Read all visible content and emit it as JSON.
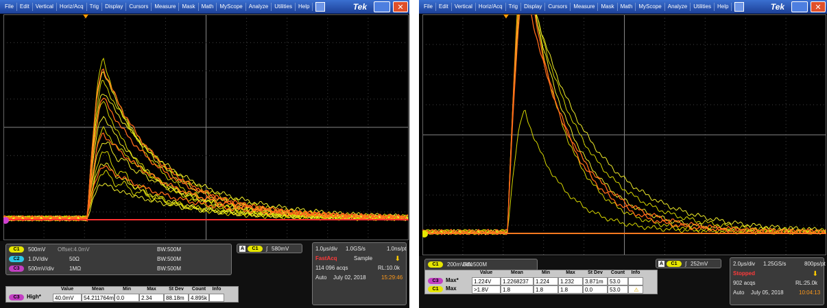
{
  "screens": [
    {
      "menu": [
        "File",
        "Edit",
        "Vertical",
        "Horiz/Acq",
        "Trig",
        "Display",
        "Cursors",
        "Measure",
        "Mask",
        "Math",
        "MyScope",
        "Analyze",
        "Utilities",
        "Help"
      ],
      "brand": "Tek",
      "channels": [
        {
          "badge": "C1",
          "color": "#e6e600",
          "scale": "500mV",
          "extra": "Offset:4.0mV",
          "bw": "BW:500M"
        },
        {
          "badge": "C2",
          "color": "#2ec8e6",
          "scale": "1.0V/div",
          "extra": "50Ω",
          "bw": "BW:500M"
        },
        {
          "badge": "C3",
          "color": "#c23fc2",
          "scale": "500mV/div",
          "extra": "1MΩ",
          "bw": "BW:500M"
        }
      ],
      "trigger": {
        "source": "A",
        "channel": "C1",
        "color": "#e6e600",
        "level": "580mV"
      },
      "acquisition": {
        "timebase": "1.0μs/div",
        "rate": "1.0GS/s",
        "resolution": "1.0ns/pt",
        "mode": "FastAcq",
        "sample": "Sample",
        "acqs": "114 096 acqs",
        "record": "RL:10.0k",
        "trigger_mode": "Auto",
        "date": "July 02, 2018",
        "time": "15:29:46"
      },
      "measurements": {
        "header": [
          "Value",
          "Mean",
          "Min",
          "Max",
          "St Dev",
          "Count",
          "Info"
        ],
        "rows": [
          {
            "badge": "C3",
            "color": "#c23fc2",
            "label": "High*",
            "cells": [
              "40.0mV",
              "54.211764m",
              "0.0",
              "2.34",
              "88.18m",
              "4.895k"
            ],
            "warning": false
          }
        ]
      }
    },
    {
      "menu": [
        "File",
        "Edit",
        "Vertical",
        "Horiz/Acq",
        "Trig",
        "Display",
        "Cursors",
        "Measure",
        "Mask",
        "Math",
        "MyScope",
        "Analyze",
        "Utilities",
        "Help"
      ],
      "brand": "Tek",
      "channels": [
        {
          "badge": "C1",
          "color": "#e6e600",
          "scale": "200mV/div",
          "bw": "BW:500M"
        }
      ],
      "trigger": {
        "source": "A",
        "channel": "C1",
        "color": "#e6e600",
        "level": "252mV"
      },
      "acquisition": {
        "timebase": "2.0μs/div",
        "rate": "1.25GS/s",
        "resolution": "800ps/pt",
        "mode": "Stopped",
        "acqs": "902 acqs",
        "record": "RL:25.0k",
        "trigger_mode": "Auto",
        "date": "July 05, 2018",
        "time": "10:04:13"
      },
      "measurements": {
        "header": [
          "Value",
          "Mean",
          "Min",
          "Max",
          "St Dev",
          "Count",
          "Info"
        ],
        "rows": [
          {
            "badge": "C3",
            "color": "#c23fc2",
            "label": "Max*",
            "cells": [
              "1.224V",
              "1.2268237",
              "1.224",
              "1.232",
              "3.871m",
              "53.0"
            ],
            "warning": false
          },
          {
            "badge": "C1",
            "color": "#e6e600",
            "label": "Max",
            "cells": [
              ">1.8V",
              "1.8",
              "1.8",
              "1.8",
              "0.0",
              "53.0"
            ],
            "warning": true
          }
        ]
      }
    }
  ]
}
